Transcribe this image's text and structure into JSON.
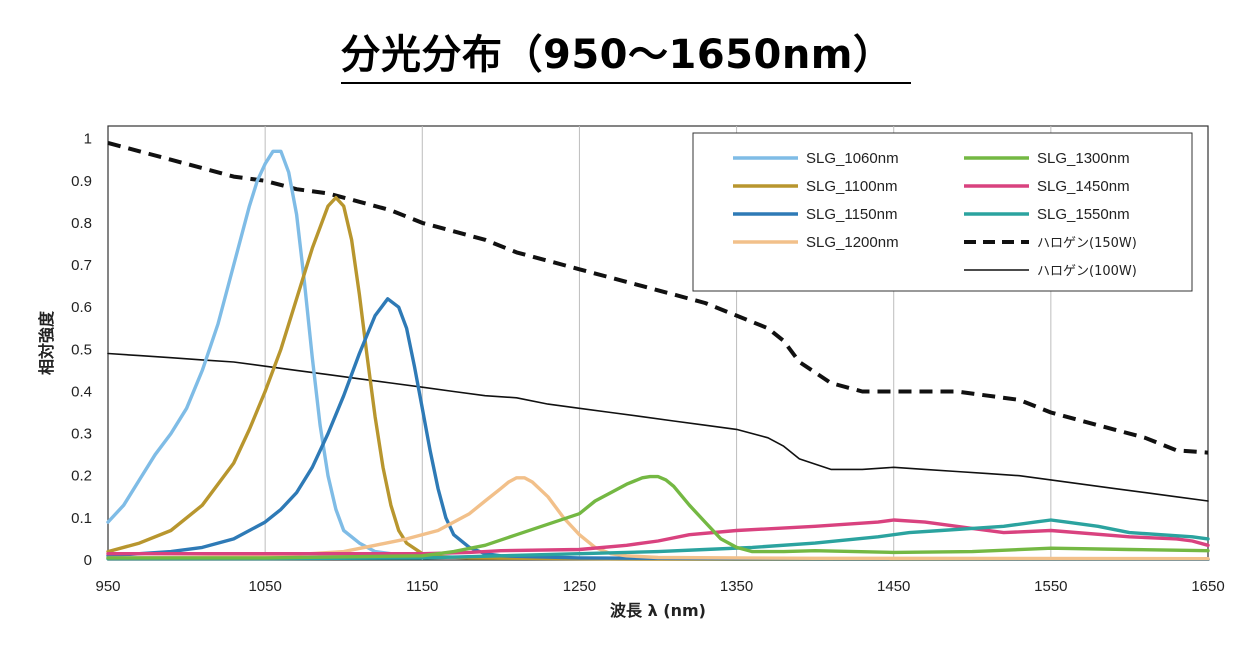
{
  "header": {
    "title": "分光分布（950～1650nm）"
  },
  "chart_data": {
    "type": "line",
    "title": "分光分布（950～1650nm）",
    "xlabel": "波長 λ (nm)",
    "ylabel": "相対強度",
    "xlim": [
      950,
      1650
    ],
    "ylim": [
      0,
      1.03
    ],
    "xticks": [
      950,
      1050,
      1150,
      1250,
      1350,
      1450,
      1550,
      1650
    ],
    "xtick_labels": [
      "950",
      "1050",
      "1150",
      "1250",
      "1350",
      "1450",
      "1550",
      "1650"
    ],
    "yticks": [
      0,
      0.1,
      0.2,
      0.3,
      0.4,
      0.5,
      0.6,
      0.7,
      0.8,
      0.9,
      1
    ],
    "ytick_labels": [
      "0",
      "0.1",
      "0.2",
      "0.3",
      "0.4",
      "0.5",
      "0.6",
      "0.7",
      "0.8",
      "0.9",
      "1"
    ],
    "grid": "vertical",
    "legend_position": "top-right",
    "series": [
      {
        "name": "SLG_1060nm",
        "color": "#7fbce6",
        "style": "solid",
        "x": [
          950,
          960,
          970,
          980,
          990,
          1000,
          1010,
          1020,
          1030,
          1040,
          1045,
          1050,
          1055,
          1060,
          1065,
          1070,
          1075,
          1080,
          1085,
          1090,
          1095,
          1100,
          1110,
          1120,
          1130,
          1140,
          1150,
          1200,
          1300,
          1400,
          1500,
          1650
        ],
        "y": [
          0.09,
          0.13,
          0.19,
          0.25,
          0.3,
          0.36,
          0.45,
          0.56,
          0.7,
          0.84,
          0.9,
          0.94,
          0.97,
          0.97,
          0.92,
          0.82,
          0.66,
          0.48,
          0.32,
          0.2,
          0.12,
          0.07,
          0.04,
          0.02,
          0.015,
          0.01,
          0.008,
          0.005,
          0.003,
          0.002,
          0.002,
          0.002
        ]
      },
      {
        "name": "SLG_1100nm",
        "color": "#b8962e",
        "style": "solid",
        "x": [
          950,
          970,
          990,
          1010,
          1030,
          1040,
          1050,
          1060,
          1070,
          1080,
          1090,
          1095,
          1100,
          1105,
          1110,
          1115,
          1120,
          1125,
          1130,
          1135,
          1140,
          1150,
          1160,
          1180,
          1250,
          1350,
          1650
        ],
        "y": [
          0.02,
          0.04,
          0.07,
          0.13,
          0.23,
          0.31,
          0.4,
          0.5,
          0.62,
          0.74,
          0.84,
          0.86,
          0.84,
          0.76,
          0.63,
          0.48,
          0.34,
          0.22,
          0.13,
          0.07,
          0.04,
          0.015,
          0.008,
          0.005,
          0.003,
          0.002,
          0.002
        ]
      },
      {
        "name": "SLG_1150nm",
        "color": "#2e7ab6",
        "style": "solid",
        "x": [
          950,
          970,
          990,
          1010,
          1030,
          1050,
          1060,
          1070,
          1080,
          1090,
          1100,
          1110,
          1120,
          1128,
          1135,
          1140,
          1145,
          1150,
          1155,
          1160,
          1165,
          1170,
          1180,
          1190,
          1200,
          1250,
          1350,
          1650
        ],
        "y": [
          0.01,
          0.015,
          0.02,
          0.03,
          0.05,
          0.09,
          0.12,
          0.16,
          0.22,
          0.3,
          0.39,
          0.49,
          0.58,
          0.62,
          0.6,
          0.55,
          0.46,
          0.36,
          0.26,
          0.17,
          0.1,
          0.06,
          0.03,
          0.015,
          0.01,
          0.005,
          0.003,
          0.002
        ]
      },
      {
        "name": "SLG_1200nm",
        "color": "#f2c08a",
        "style": "solid",
        "x": [
          950,
          1000,
          1050,
          1100,
          1120,
          1140,
          1160,
          1170,
          1180,
          1190,
          1200,
          1205,
          1210,
          1215,
          1220,
          1230,
          1240,
          1250,
          1260,
          1270,
          1280,
          1300,
          1400,
          1650
        ],
        "y": [
          0.005,
          0.006,
          0.008,
          0.02,
          0.035,
          0.05,
          0.07,
          0.09,
          0.11,
          0.14,
          0.17,
          0.185,
          0.195,
          0.195,
          0.185,
          0.15,
          0.1,
          0.06,
          0.03,
          0.015,
          0.01,
          0.006,
          0.004,
          0.003
        ]
      },
      {
        "name": "SLG_1300nm",
        "color": "#74b843",
        "style": "solid",
        "x": [
          950,
          1050,
          1150,
          1170,
          1190,
          1210,
          1230,
          1250,
          1260,
          1270,
          1280,
          1290,
          1295,
          1300,
          1305,
          1310,
          1320,
          1330,
          1340,
          1350,
          1360,
          1380,
          1400,
          1450,
          1500,
          1550,
          1600,
          1650
        ],
        "y": [
          0.005,
          0.005,
          0.01,
          0.02,
          0.035,
          0.06,
          0.085,
          0.11,
          0.14,
          0.16,
          0.18,
          0.195,
          0.198,
          0.198,
          0.19,
          0.175,
          0.13,
          0.09,
          0.05,
          0.03,
          0.02,
          0.02,
          0.022,
          0.018,
          0.02,
          0.028,
          0.025,
          0.022
        ]
      },
      {
        "name": "SLG_1450nm",
        "color": "#d9427f",
        "style": "solid",
        "x": [
          950,
          1000,
          1050,
          1100,
          1150,
          1180,
          1200,
          1250,
          1280,
          1300,
          1320,
          1350,
          1400,
          1440,
          1450,
          1470,
          1500,
          1520,
          1550,
          1600,
          1630,
          1640,
          1650
        ],
        "y": [
          0.015,
          0.015,
          0.015,
          0.015,
          0.015,
          0.018,
          0.022,
          0.025,
          0.035,
          0.045,
          0.06,
          0.07,
          0.08,
          0.09,
          0.095,
          0.09,
          0.075,
          0.065,
          0.07,
          0.055,
          0.05,
          0.045,
          0.035
        ]
      },
      {
        "name": "SLG_1550nm",
        "color": "#2ba39f",
        "style": "solid",
        "x": [
          950,
          1050,
          1150,
          1200,
          1250,
          1300,
          1330,
          1360,
          1400,
          1440,
          1460,
          1480,
          1500,
          1520,
          1540,
          1550,
          1560,
          1580,
          1600,
          1620,
          1640,
          1650
        ],
        "y": [
          0.003,
          0.003,
          0.005,
          0.01,
          0.015,
          0.02,
          0.025,
          0.03,
          0.04,
          0.055,
          0.065,
          0.07,
          0.075,
          0.08,
          0.09,
          0.095,
          0.09,
          0.08,
          0.065,
          0.06,
          0.055,
          0.05
        ]
      },
      {
        "name": "ハロゲン(150W)",
        "color": "#111111",
        "style": "dashed",
        "x": [
          950,
          970,
          990,
          1010,
          1030,
          1050,
          1070,
          1090,
          1110,
          1130,
          1150,
          1170,
          1190,
          1210,
          1230,
          1250,
          1270,
          1290,
          1310,
          1330,
          1350,
          1370,
          1380,
          1390,
          1410,
          1430,
          1450,
          1470,
          1490,
          1510,
          1530,
          1550,
          1570,
          1590,
          1610,
          1630,
          1650
        ],
        "y": [
          0.99,
          0.97,
          0.95,
          0.93,
          0.91,
          0.9,
          0.88,
          0.87,
          0.85,
          0.83,
          0.8,
          0.78,
          0.76,
          0.73,
          0.71,
          0.69,
          0.67,
          0.65,
          0.63,
          0.61,
          0.58,
          0.55,
          0.52,
          0.47,
          0.42,
          0.4,
          0.4,
          0.4,
          0.4,
          0.39,
          0.38,
          0.35,
          0.33,
          0.31,
          0.29,
          0.26,
          0.255
        ]
      },
      {
        "name": "ハロゲン(100W)",
        "color": "#111111",
        "style": "thin",
        "x": [
          950,
          970,
          990,
          1010,
          1030,
          1050,
          1070,
          1090,
          1110,
          1130,
          1150,
          1170,
          1190,
          1210,
          1230,
          1250,
          1270,
          1290,
          1310,
          1330,
          1350,
          1370,
          1380,
          1390,
          1410,
          1430,
          1450,
          1470,
          1490,
          1510,
          1530,
          1550,
          1570,
          1590,
          1610,
          1630,
          1650
        ],
        "y": [
          0.49,
          0.485,
          0.48,
          0.475,
          0.47,
          0.46,
          0.45,
          0.44,
          0.43,
          0.42,
          0.41,
          0.4,
          0.39,
          0.385,
          0.37,
          0.36,
          0.35,
          0.34,
          0.33,
          0.32,
          0.31,
          0.29,
          0.27,
          0.24,
          0.215,
          0.215,
          0.22,
          0.215,
          0.21,
          0.205,
          0.2,
          0.19,
          0.18,
          0.17,
          0.16,
          0.15,
          0.14
        ]
      }
    ]
  }
}
